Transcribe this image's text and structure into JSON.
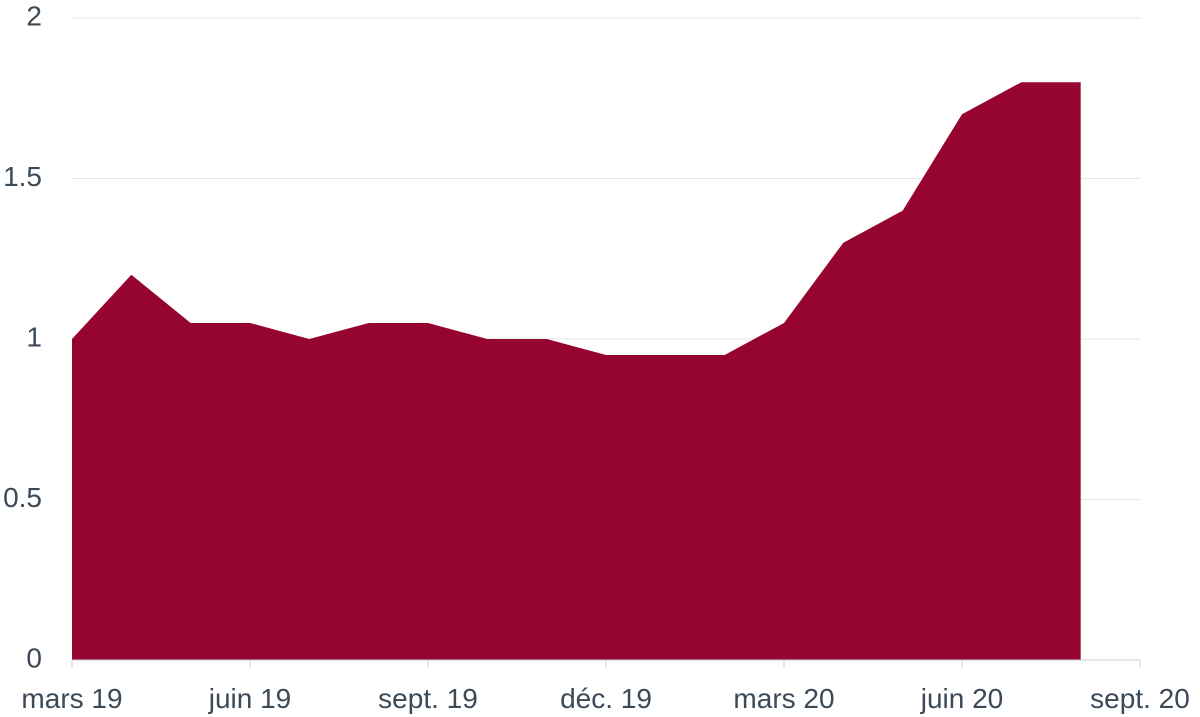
{
  "chart_data": {
    "type": "area",
    "title": "",
    "xlabel": "",
    "ylabel": "",
    "x": [
      "2019-03",
      "2019-04",
      "2019-05",
      "2019-06",
      "2019-07",
      "2019-08",
      "2019-09",
      "2019-10",
      "2019-11",
      "2019-12",
      "2020-01",
      "2020-02",
      "2020-03",
      "2020-04",
      "2020-05",
      "2020-06",
      "2020-07",
      "2020-08"
    ],
    "series": [
      {
        "values": [
          1.0,
          1.2,
          1.05,
          1.05,
          1.0,
          1.05,
          1.05,
          1.0,
          1.0,
          0.95,
          0.95,
          0.95,
          1.05,
          1.3,
          1.4,
          1.7,
          1.8,
          1.8
        ],
        "color": "#960530"
      }
    ],
    "x_tick_labels": [
      "mars 19",
      "juin 19",
      "sept. 19",
      "déc. 19",
      "mars 20",
      "juin 20",
      "sept. 20"
    ],
    "y_tick_labels": [
      "0",
      "0.5",
      "1",
      "1.5",
      "2"
    ],
    "ylim": [
      0,
      2
    ],
    "xlim": [
      "2019-03",
      "2020-09"
    ],
    "grid": true,
    "legend": "none"
  }
}
